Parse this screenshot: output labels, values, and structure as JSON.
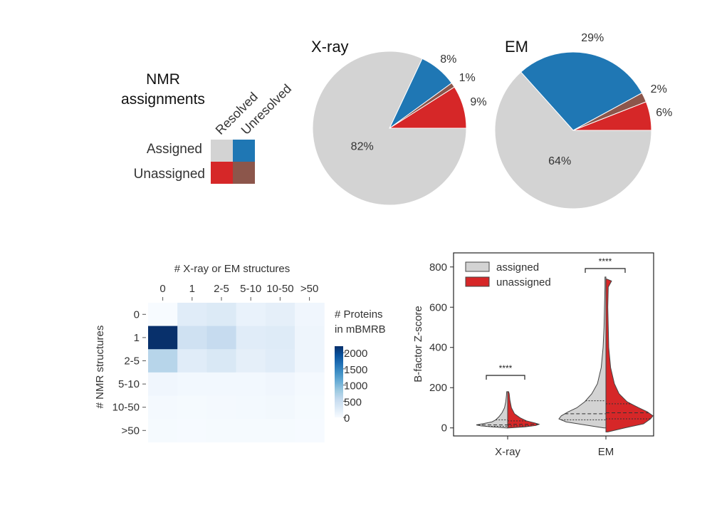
{
  "colors": {
    "assigned_resolved": "#d3d3d3",
    "assigned_unresolved": "#1f77b4",
    "unassigned_resolved": "#d62728",
    "unassigned_unresolved": "#8c564b",
    "heat_low": "#f7fbff",
    "heat_high": "#08306b"
  },
  "legend": {
    "title_line1": "NMR",
    "title_line2": "assignments",
    "col_resolved": "Resolved",
    "col_unresolved": "Unresolved",
    "row_assigned": "Assigned",
    "row_unassigned": "Unassigned"
  },
  "chart_data": [
    {
      "type": "pie",
      "title": "X-ray",
      "slices": [
        {
          "label": "Assigned, resolved",
          "key": "assigned_resolved",
          "value": 82,
          "text": "82%"
        },
        {
          "label": "Assigned, unresolved",
          "key": "assigned_unresolved",
          "value": 8,
          "text": "8%"
        },
        {
          "label": "Unassigned, unresolved",
          "key": "unassigned_unresolved",
          "value": 1,
          "text": "1%"
        },
        {
          "label": "Unassigned, resolved",
          "key": "unassigned_resolved",
          "value": 9,
          "text": "9%"
        }
      ]
    },
    {
      "type": "pie",
      "title": "EM",
      "slices": [
        {
          "label": "Assigned, resolved",
          "key": "assigned_resolved",
          "value": 64,
          "text": "64%"
        },
        {
          "label": "Assigned, unresolved",
          "key": "assigned_unresolved",
          "value": 29,
          "text": "29%"
        },
        {
          "label": "Unassigned, unresolved",
          "key": "unassigned_unresolved",
          "value": 2,
          "text": "2%"
        },
        {
          "label": "Unassigned, resolved",
          "key": "unassigned_resolved",
          "value": 6,
          "text": "6%"
        }
      ]
    },
    {
      "type": "heatmap",
      "xlabel": "# X-ray or EM structures",
      "ylabel": "# NMR structures",
      "x_categories": [
        "0",
        "1",
        "2-5",
        "5-10",
        "10-50",
        ">50"
      ],
      "y_categories": [
        "0",
        "1",
        "2-5",
        "5-10",
        "10-50",
        ">50"
      ],
      "values": [
        [
          0,
          250,
          300,
          150,
          200,
          80
        ],
        [
          2200,
          450,
          550,
          250,
          280,
          100
        ],
        [
          650,
          250,
          330,
          200,
          250,
          100
        ],
        [
          80,
          50,
          50,
          50,
          80,
          30
        ],
        [
          30,
          20,
          30,
          40,
          60,
          20
        ],
        [
          20,
          15,
          20,
          20,
          25,
          10
        ]
      ],
      "colorbar": {
        "title_line1": "# Proteins",
        "title_line2": "in mBMRB",
        "ticks": [
          2000,
          1500,
          1000,
          500,
          0
        ],
        "range": [
          0,
          2200
        ]
      }
    },
    {
      "type": "violin",
      "ylabel": "B-factor Z-score",
      "categories": [
        "X-ray",
        "EM"
      ],
      "ylim": [
        -40,
        870
      ],
      "yticks": [
        0,
        200,
        400,
        600,
        800
      ],
      "legend": [
        {
          "label": "assigned",
          "key": "assigned_resolved"
        },
        {
          "label": "unassigned",
          "key": "unassigned_resolved"
        }
      ],
      "significance": [
        "****",
        "****"
      ],
      "series": [
        {
          "category": "X-ray",
          "assigned": {
            "min": 0,
            "max": 180,
            "q1": 8,
            "median": 15,
            "q3": 40,
            "profile": [
              [
                0,
                0.04
              ],
              [
                5,
                0.5
              ],
              [
                10,
                0.85
              ],
              [
                15,
                1.0
              ],
              [
                22,
                0.75
              ],
              [
                30,
                0.5
              ],
              [
                40,
                0.38
              ],
              [
                55,
                0.28
              ],
              [
                75,
                0.18
              ],
              [
                100,
                0.1
              ],
              [
                130,
                0.06
              ],
              [
                160,
                0.04
              ],
              [
                180,
                0.03
              ]
            ]
          },
          "unassigned": {
            "min": 0,
            "max": 180,
            "q1": 10,
            "median": 18,
            "q3": 35,
            "profile": [
              [
                0,
                0.04
              ],
              [
                5,
                0.55
              ],
              [
                12,
                0.9
              ],
              [
                18,
                1.0
              ],
              [
                25,
                0.85
              ],
              [
                35,
                0.6
              ],
              [
                50,
                0.4
              ],
              [
                70,
                0.22
              ],
              [
                100,
                0.12
              ],
              [
                140,
                0.07
              ],
              [
                170,
                0.05
              ],
              [
                180,
                0.03
              ]
            ]
          }
        },
        {
          "category": "EM",
          "assigned": {
            "min": 0,
            "max": 750,
            "q1": 40,
            "median": 70,
            "q3": 135,
            "profile": [
              [
                0,
                0.04
              ],
              [
                15,
                0.45
              ],
              [
                30,
                0.85
              ],
              [
                45,
                1.0
              ],
              [
                60,
                0.95
              ],
              [
                80,
                0.8
              ],
              [
                100,
                0.62
              ],
              [
                130,
                0.45
              ],
              [
                170,
                0.3
              ],
              [
                220,
                0.18
              ],
              [
                300,
                0.1
              ],
              [
                400,
                0.06
              ],
              [
                500,
                0.04
              ],
              [
                600,
                0.03
              ],
              [
                700,
                0.02
              ],
              [
                750,
                0.02
              ]
            ]
          },
          "unassigned": {
            "min": -20,
            "max": 740,
            "q1": 45,
            "median": 75,
            "q3": 120,
            "profile": [
              [
                -20,
                0.04
              ],
              [
                0,
                0.4
              ],
              [
                20,
                0.8
              ],
              [
                45,
                0.95
              ],
              [
                60,
                1.0
              ],
              [
                80,
                0.88
              ],
              [
                100,
                0.7
              ],
              [
                130,
                0.45
              ],
              [
                170,
                0.28
              ],
              [
                220,
                0.18
              ],
              [
                300,
                0.1
              ],
              [
                400,
                0.06
              ],
              [
                500,
                0.05
              ],
              [
                600,
                0.04
              ],
              [
                700,
                0.05
              ],
              [
                730,
                0.12
              ],
              [
                740,
                0.02
              ]
            ]
          }
        }
      ]
    }
  ]
}
